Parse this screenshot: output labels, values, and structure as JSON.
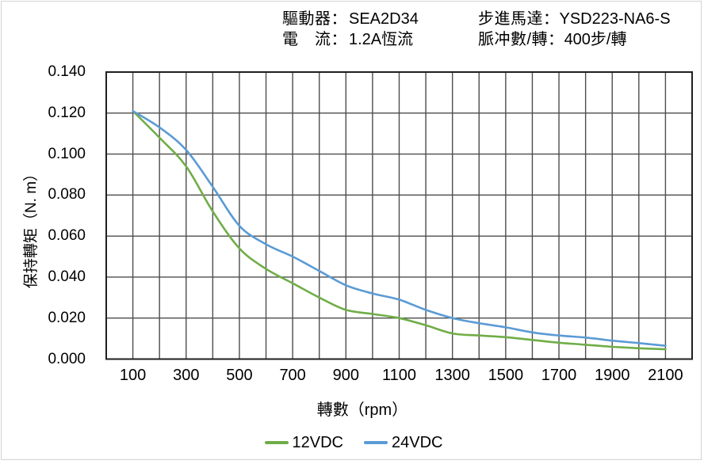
{
  "figure": {
    "border_color": "#d4d4d4",
    "background": "#ffffff"
  },
  "header": {
    "left": [
      {
        "label": "驅動器：",
        "value": "SEA2D34"
      },
      {
        "label": "電　流：",
        "value": "1.2A恆流"
      }
    ],
    "right": [
      {
        "label": "步進馬達：",
        "value": "YSD223-NA6-S"
      },
      {
        "label": "脈冲數/轉：",
        "value": "400步/轉"
      }
    ]
  },
  "chart_data": {
    "type": "line",
    "title": "",
    "xlabel": "轉數（rpm）",
    "ylabel": "保持轉矩（N. m）",
    "xlim": [
      0,
      2200
    ],
    "ylim": [
      0,
      0.14
    ],
    "x_grid_step": 100,
    "y_grid_step": 0.02,
    "grid": true,
    "grid_color": "#4d4d4d",
    "frame_color": "#1f1f1f",
    "legend_position": "bottom",
    "x_ticks": [
      "100",
      "300",
      "500",
      "700",
      "900",
      "1100",
      "1300",
      "1500",
      "1700",
      "1900",
      "2100"
    ],
    "x_tick_values": [
      100,
      300,
      500,
      700,
      900,
      1100,
      1300,
      1500,
      1700,
      1900,
      2100
    ],
    "y_ticks": [
      "0.000",
      "0.020",
      "0.040",
      "0.060",
      "0.080",
      "0.100",
      "0.120",
      "0.140"
    ],
    "y_tick_values": [
      0,
      0.02,
      0.04,
      0.06,
      0.08,
      0.1,
      0.12,
      0.14
    ],
    "x": [
      100,
      200,
      300,
      400,
      500,
      600,
      700,
      800,
      900,
      1000,
      1100,
      1200,
      1300,
      1400,
      1500,
      1600,
      1700,
      1800,
      1900,
      2000,
      2100
    ],
    "series": [
      {
        "name": "12VDC",
        "color": "#70AD47",
        "values": [
          0.121,
          0.108,
          0.094,
          0.072,
          0.054,
          0.044,
          0.037,
          0.03,
          0.024,
          0.022,
          0.02,
          0.0165,
          0.0125,
          0.0115,
          0.0107,
          0.0093,
          0.008,
          0.007,
          0.006,
          0.0053,
          0.0048
        ]
      },
      {
        "name": "24VDC",
        "color": "#5B9BD5",
        "values": [
          0.121,
          0.113,
          0.102,
          0.084,
          0.065,
          0.056,
          0.05,
          0.043,
          0.036,
          0.032,
          0.029,
          0.024,
          0.02,
          0.0175,
          0.0155,
          0.013,
          0.0115,
          0.0105,
          0.009,
          0.0078,
          0.0065
        ]
      }
    ]
  }
}
